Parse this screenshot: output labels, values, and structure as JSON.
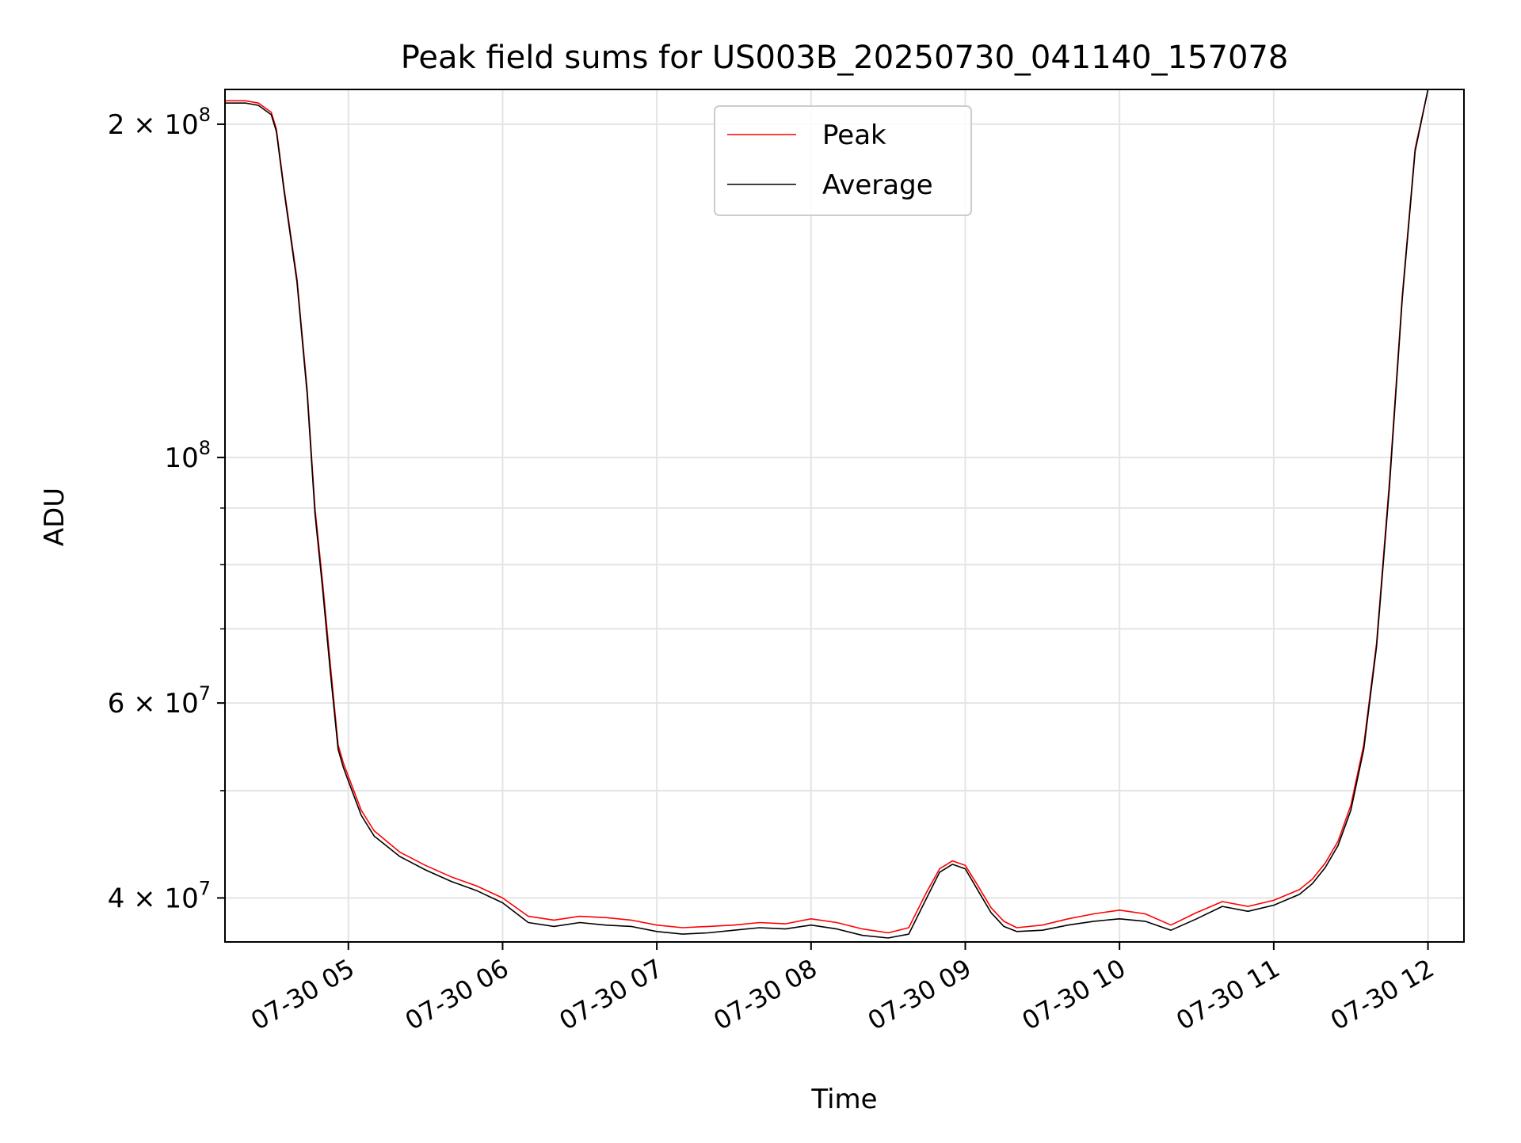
{
  "chart_data": {
    "type": "line",
    "title": "Peak field sums for US003B_20250730_041140_157078",
    "xlabel": "Time",
    "ylabel": "ADU",
    "yscale": "log",
    "xlim": [
      "2025-07-30 04:12",
      "2025-07-30 12:14"
    ],
    "ylim": [
      36500000,
      215000000
    ],
    "x_ticks": [
      "07-30 05",
      "07-30 06",
      "07-30 07",
      "07-30 08",
      "07-30 09",
      "07-30 10",
      "07-30 11",
      "07-30 12"
    ],
    "y_ticks_major": [
      {
        "value": 40000000,
        "mant": "4",
        "exp": "7"
      },
      {
        "value": 60000000,
        "mant": "6",
        "exp": "7"
      },
      {
        "value": 100000000,
        "mant": "",
        "exp": "8"
      },
      {
        "value": 200000000,
        "mant": "2",
        "exp": "8"
      }
    ],
    "y_ticks_minor": [
      50000000,
      70000000,
      80000000,
      90000000
    ],
    "grid": true,
    "legend_position": "upper-center",
    "colors": {
      "peak": "#ff0000",
      "average": "#000000"
    },
    "series": [
      {
        "name": "Peak",
        "color": "#ff0000",
        "x": [
          "2025-07-30 04:12",
          "2025-07-30 04:20",
          "2025-07-30 04:25",
          "2025-07-30 04:30",
          "2025-07-30 04:32",
          "2025-07-30 04:35",
          "2025-07-30 04:40",
          "2025-07-30 04:44",
          "2025-07-30 04:47",
          "2025-07-30 04:50",
          "2025-07-30 04:53",
          "2025-07-30 04:56",
          "2025-07-30 04:58",
          "2025-07-30 05:00",
          "2025-07-30 05:05",
          "2025-07-30 05:10",
          "2025-07-30 05:20",
          "2025-07-30 05:30",
          "2025-07-30 05:40",
          "2025-07-30 05:50",
          "2025-07-30 06:00",
          "2025-07-30 06:10",
          "2025-07-30 06:20",
          "2025-07-30 06:30",
          "2025-07-30 06:40",
          "2025-07-30 06:50",
          "2025-07-30 07:00",
          "2025-07-30 07:10",
          "2025-07-30 07:20",
          "2025-07-30 07:30",
          "2025-07-30 07:40",
          "2025-07-30 07:50",
          "2025-07-30 08:00",
          "2025-07-30 08:10",
          "2025-07-30 08:20",
          "2025-07-30 08:30",
          "2025-07-30 08:38",
          "2025-07-30 08:45",
          "2025-07-30 08:50",
          "2025-07-30 08:55",
          "2025-07-30 09:00",
          "2025-07-30 09:05",
          "2025-07-30 09:10",
          "2025-07-30 09:15",
          "2025-07-30 09:20",
          "2025-07-30 09:30",
          "2025-07-30 09:40",
          "2025-07-30 09:50",
          "2025-07-30 10:00",
          "2025-07-30 10:10",
          "2025-07-30 10:20",
          "2025-07-30 10:30",
          "2025-07-30 10:40",
          "2025-07-30 10:50",
          "2025-07-30 11:00",
          "2025-07-30 11:10",
          "2025-07-30 11:15",
          "2025-07-30 11:20",
          "2025-07-30 11:25",
          "2025-07-30 11:30",
          "2025-07-30 11:35",
          "2025-07-30 11:40",
          "2025-07-30 11:45",
          "2025-07-30 11:50",
          "2025-07-30 11:55",
          "2025-07-30 12:00"
        ],
        "y": [
          210000000,
          210000000,
          209000000,
          205000000,
          198000000,
          175000000,
          145000000,
          115000000,
          90000000,
          77000000,
          65000000,
          55000000,
          53000000,
          51500000,
          48000000,
          46000000,
          44000000,
          42800000,
          41800000,
          41000000,
          40000000,
          38500000,
          38200000,
          38500000,
          38400000,
          38200000,
          37800000,
          37600000,
          37700000,
          37800000,
          38000000,
          37900000,
          38300000,
          38000000,
          37500000,
          37200000,
          37600000,
          40500000,
          42500000,
          43200000,
          42800000,
          41000000,
          39200000,
          38100000,
          37600000,
          37800000,
          38300000,
          38700000,
          39000000,
          38700000,
          37800000,
          38800000,
          39700000,
          39300000,
          39800000,
          40700000,
          41600000,
          43000000,
          45000000,
          48500000,
          55000000,
          68000000,
          95000000,
          140000000,
          190000000,
          215000000
        ]
      },
      {
        "name": "Average",
        "color": "#000000",
        "x": [
          "2025-07-30 04:12",
          "2025-07-30 04:20",
          "2025-07-30 04:25",
          "2025-07-30 04:30",
          "2025-07-30 04:32",
          "2025-07-30 04:35",
          "2025-07-30 04:40",
          "2025-07-30 04:44",
          "2025-07-30 04:47",
          "2025-07-30 04:50",
          "2025-07-30 04:53",
          "2025-07-30 04:56",
          "2025-07-30 04:58",
          "2025-07-30 05:00",
          "2025-07-30 05:05",
          "2025-07-30 05:10",
          "2025-07-30 05:20",
          "2025-07-30 05:30",
          "2025-07-30 05:40",
          "2025-07-30 05:50",
          "2025-07-30 06:00",
          "2025-07-30 06:10",
          "2025-07-30 06:20",
          "2025-07-30 06:30",
          "2025-07-30 06:40",
          "2025-07-30 06:50",
          "2025-07-30 07:00",
          "2025-07-30 07:10",
          "2025-07-30 07:20",
          "2025-07-30 07:30",
          "2025-07-30 07:40",
          "2025-07-30 07:50",
          "2025-07-30 08:00",
          "2025-07-30 08:10",
          "2025-07-30 08:20",
          "2025-07-30 08:30",
          "2025-07-30 08:38",
          "2025-07-30 08:45",
          "2025-07-30 08:50",
          "2025-07-30 08:55",
          "2025-07-30 09:00",
          "2025-07-30 09:05",
          "2025-07-30 09:10",
          "2025-07-30 09:15",
          "2025-07-30 09:20",
          "2025-07-30 09:30",
          "2025-07-30 09:40",
          "2025-07-30 09:50",
          "2025-07-30 10:00",
          "2025-07-30 10:10",
          "2025-07-30 10:20",
          "2025-07-30 10:30",
          "2025-07-30 10:40",
          "2025-07-30 10:50",
          "2025-07-30 11:00",
          "2025-07-30 11:10",
          "2025-07-30 11:15",
          "2025-07-30 11:20",
          "2025-07-30 11:25",
          "2025-07-30 11:30",
          "2025-07-30 11:35",
          "2025-07-30 11:40",
          "2025-07-30 11:45",
          "2025-07-30 11:50",
          "2025-07-30 11:55",
          "2025-07-30 12:00"
        ],
        "y": [
          209000000,
          209000000,
          208000000,
          204000000,
          197000000,
          174000000,
          144000000,
          114000000,
          89000000,
          76000000,
          64000000,
          54500000,
          52500000,
          51000000,
          47500000,
          45500000,
          43600000,
          42400000,
          41400000,
          40600000,
          39600000,
          38000000,
          37700000,
          38000000,
          37800000,
          37700000,
          37300000,
          37100000,
          37200000,
          37400000,
          37600000,
          37500000,
          37800000,
          37500000,
          37000000,
          36800000,
          37100000,
          40000000,
          42200000,
          42900000,
          42500000,
          40600000,
          38800000,
          37700000,
          37300000,
          37400000,
          37800000,
          38100000,
          38300000,
          38100000,
          37400000,
          38300000,
          39300000,
          38900000,
          39400000,
          40300000,
          41200000,
          42600000,
          44600000,
          48000000,
          54500000,
          67500000,
          94000000,
          139000000,
          189000000,
          215000000
        ]
      }
    ]
  }
}
